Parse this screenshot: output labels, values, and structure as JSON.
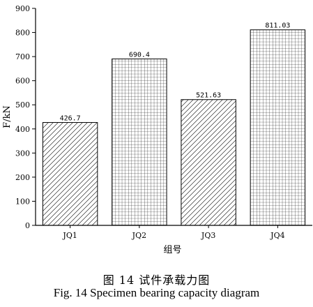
{
  "chart_data": {
    "type": "bar",
    "categories": [
      "JQ1",
      "JQ2",
      "JQ3",
      "JQ4"
    ],
    "values": [
      426.7,
      690.4,
      521.63,
      811.03
    ],
    "value_labels": [
      "426.7",
      "690.4",
      "521.63",
      "811.03"
    ],
    "patterns": [
      "diagonal-hatch",
      "grid",
      "diagonal-hatch",
      "grid"
    ],
    "xlabel": "组号",
    "ylabel": "F/kN",
    "ylim": [
      0,
      900
    ],
    "yticks": [
      0,
      100,
      200,
      300,
      400,
      500,
      600,
      700,
      800,
      900
    ],
    "grid": false,
    "bar_color": "#000000",
    "background": "#ffffff"
  },
  "caption": {
    "zh": "图 14  试件承载力图",
    "en": "Fig. 14 Specimen bearing capacity diagram"
  }
}
